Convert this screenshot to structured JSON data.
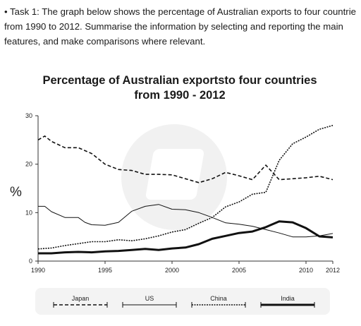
{
  "task_text": "• Task 1: The graph below shows the percentage of Australian exports to four countrie\nfrom 1990 to 2012. Summarise the information by selecting and reporting the main\nfeatures, and make comparisons where relevant.",
  "chart_data": {
    "type": "line",
    "title": "Percentage of Australian exportsto four countries\nfrom 1990 - 2012",
    "xlabel": "",
    "ylabel": "%",
    "xlim": [
      1990,
      2012
    ],
    "ylim": [
      0,
      30
    ],
    "x_ticks": [
      "1990",
      "1995",
      "2000",
      "2005",
      "2010",
      "2012"
    ],
    "y_ticks": [
      "0",
      "10",
      "20",
      "30"
    ],
    "grid": false,
    "legend_position": "bottom",
    "series": [
      {
        "name": "Japan",
        "style": "dashed",
        "x": [
          1990,
          1990.5,
          1991,
          1992,
          1993,
          1994,
          1995,
          1996,
          1997,
          1998,
          1999,
          2000,
          2001,
          2002,
          2003,
          2004,
          2005,
          2006,
          2007,
          2008,
          2009,
          2010,
          2011,
          2012
        ],
        "y": [
          25,
          25.8,
          24.7,
          23.4,
          23.4,
          22.2,
          20,
          18.9,
          18.7,
          17.9,
          17.9,
          17.8,
          17,
          16.2,
          17,
          18.3,
          17.6,
          16.8,
          19.8,
          16.8,
          17,
          17.2,
          17.5,
          16.8
        ]
      },
      {
        "name": "US",
        "style": "thin",
        "x": [
          1990,
          1990.5,
          1991,
          1992,
          1993,
          1993.5,
          1994,
          1995,
          1996,
          1997,
          1998,
          1999,
          2000,
          2001,
          2002,
          2003,
          2004,
          2005,
          2006,
          2007,
          2008,
          2009,
          2010,
          2011,
          2012
        ],
        "y": [
          11.3,
          11.3,
          10.2,
          9,
          9,
          8,
          7.5,
          7.4,
          8,
          10.3,
          11.3,
          11.7,
          10.7,
          10.6,
          10,
          9,
          7.9,
          7.6,
          7.2,
          6.5,
          5.8,
          5,
          5,
          5.2,
          5.7
        ]
      },
      {
        "name": "China",
        "style": "dotted",
        "x": [
          1990,
          1991,
          1992,
          1993,
          1994,
          1995,
          1996,
          1997,
          1998,
          1999,
          2000,
          2001,
          2002,
          2003,
          2004,
          2005,
          2006,
          2007,
          2008,
          2009,
          2010,
          2011,
          2012
        ],
        "y": [
          2.5,
          2.7,
          3.2,
          3.6,
          4,
          4,
          4.4,
          4.2,
          4.6,
          5.2,
          6,
          6.5,
          7.8,
          9,
          11.2,
          12.2,
          13.8,
          14.2,
          20.8,
          24.2,
          25.6,
          27.2,
          28
        ]
      },
      {
        "name": "India",
        "style": "thick",
        "x": [
          1990,
          1991,
          1992,
          1993,
          1994,
          1995,
          1996,
          1997,
          1998,
          1999,
          2000,
          2001,
          2002,
          2003,
          2004,
          2005,
          2006,
          2007,
          2008,
          2009,
          2010,
          2011,
          2012
        ],
        "y": [
          1.6,
          1.6,
          1.8,
          1.9,
          1.8,
          2,
          2.1,
          2.3,
          2.5,
          2.3,
          2.6,
          2.8,
          3.5,
          4.6,
          5.2,
          5.8,
          6.1,
          7,
          8.2,
          8,
          6.8,
          5.1,
          4.9
        ]
      }
    ]
  }
}
